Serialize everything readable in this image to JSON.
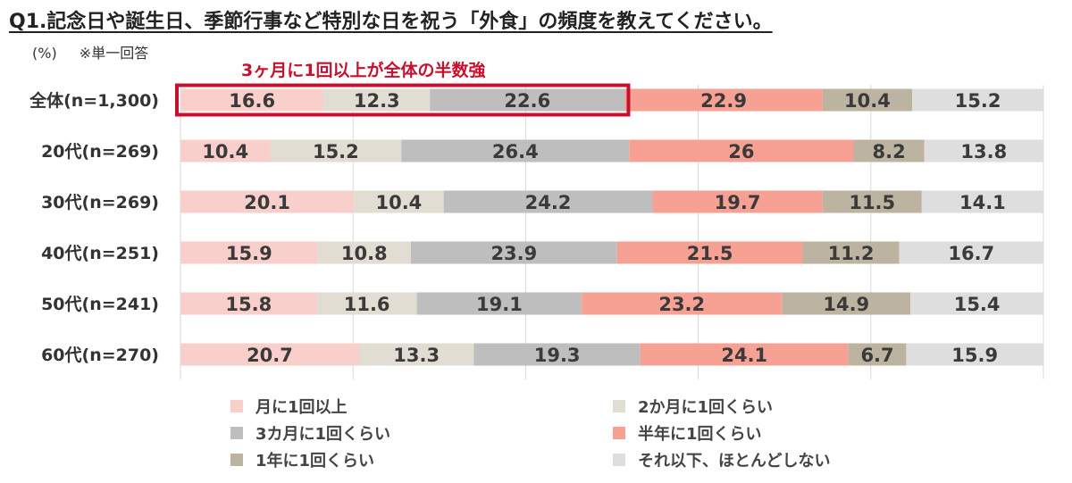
{
  "title": "Q1.記念日や誕生日、季節行事など特別な日を祝う「外食」の頻度を教えてください。",
  "unit_note": "(%)",
  "answer_note": "※単一回答",
  "callout": "3ヶ月に1回以上が全体の半数強",
  "colors": {
    "series": [
      "#f9cfcb",
      "#e2ddd3",
      "#bebebe",
      "#f7a195",
      "#bcb4a1",
      "#dedede"
    ],
    "callout": "#c8102e"
  },
  "chart_data": {
    "type": "bar",
    "orientation": "horizontal",
    "stacked": true,
    "normalized": true,
    "xlim": [
      0,
      100
    ],
    "grid": "vertical",
    "categories": [
      "全体(n=1,300)",
      "20代(n=269)",
      "30代(n=269)",
      "40代(n=251)",
      "50代(n=241)",
      "60代(n=270)"
    ],
    "series": [
      {
        "name": "月に1回以上",
        "values": [
          16.6,
          10.4,
          20.1,
          15.9,
          15.8,
          20.7
        ]
      },
      {
        "name": "2か月に1回くらい",
        "values": [
          12.3,
          15.2,
          10.4,
          10.8,
          11.6,
          13.3
        ]
      },
      {
        "name": "3カ月に1回くらい",
        "values": [
          22.6,
          26.4,
          24.2,
          23.9,
          19.1,
          19.3
        ]
      },
      {
        "name": "半年に1回くらい",
        "values": [
          22.9,
          26,
          19.7,
          21.5,
          23.2,
          24.1
        ]
      },
      {
        "name": "1年に1回くらい",
        "values": [
          10.4,
          8.2,
          11.5,
          11.2,
          14.9,
          6.7
        ]
      },
      {
        "name": "それ以下、ほとんどしない",
        "values": [
          15.2,
          13.8,
          14.1,
          16.7,
          15.4,
          15.9
        ]
      }
    ],
    "highlight": {
      "category": "全体(n=1,300)",
      "series_count": 3
    },
    "legend_position": "bottom"
  }
}
